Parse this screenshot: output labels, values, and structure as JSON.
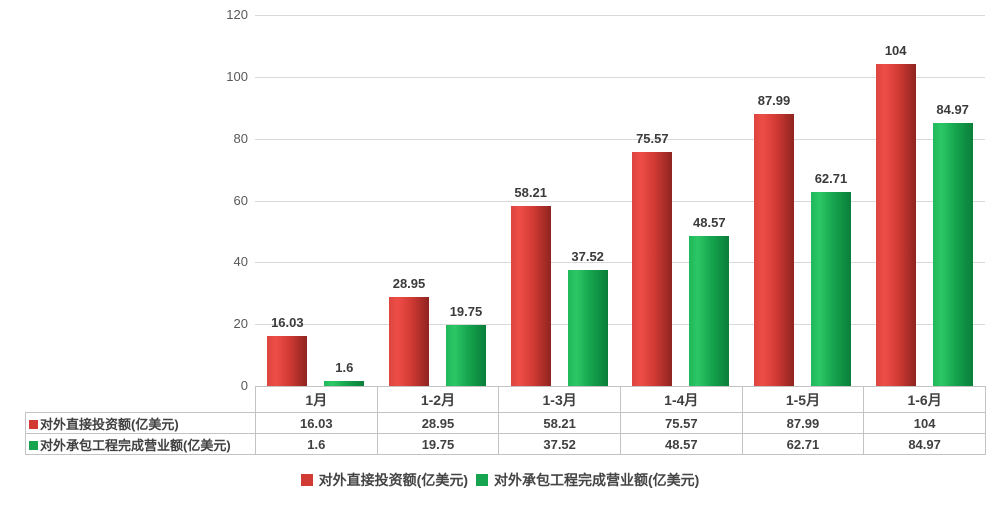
{
  "chart_data": {
    "type": "bar",
    "categories": [
      "1月",
      "1-2月",
      "1-3月",
      "1-4月",
      "1-5月",
      "1-6月"
    ],
    "series": [
      {
        "name": "对外直接投资额(亿美元)",
        "color": "#d23a34",
        "values": [
          16.03,
          28.95,
          58.21,
          75.57,
          87.99,
          104
        ],
        "labels": [
          "16.03",
          "28.95",
          "58.21",
          "75.57",
          "87.99",
          "104"
        ]
      },
      {
        "name": "对外承包工程完成营业额(亿美元)",
        "color": "#16a54e",
        "values": [
          1.6,
          19.75,
          37.52,
          48.57,
          62.71,
          84.97
        ],
        "labels": [
          "1.6",
          "19.75",
          "37.52",
          "48.57",
          "62.71",
          "84.97"
        ]
      }
    ],
    "title": "",
    "xlabel": "",
    "ylabel": "",
    "ylim": [
      0,
      120
    ],
    "yticks": [
      0,
      20,
      40,
      60,
      80,
      100,
      120
    ],
    "grid": true,
    "legend_position": "bottom",
    "data_table_shown": true
  },
  "colors": {
    "series1_red": "#d23a34",
    "series2_green": "#16a54e",
    "gridline": "#d9d9d9",
    "table_border": "#c3c3c3",
    "text": "#404040"
  }
}
